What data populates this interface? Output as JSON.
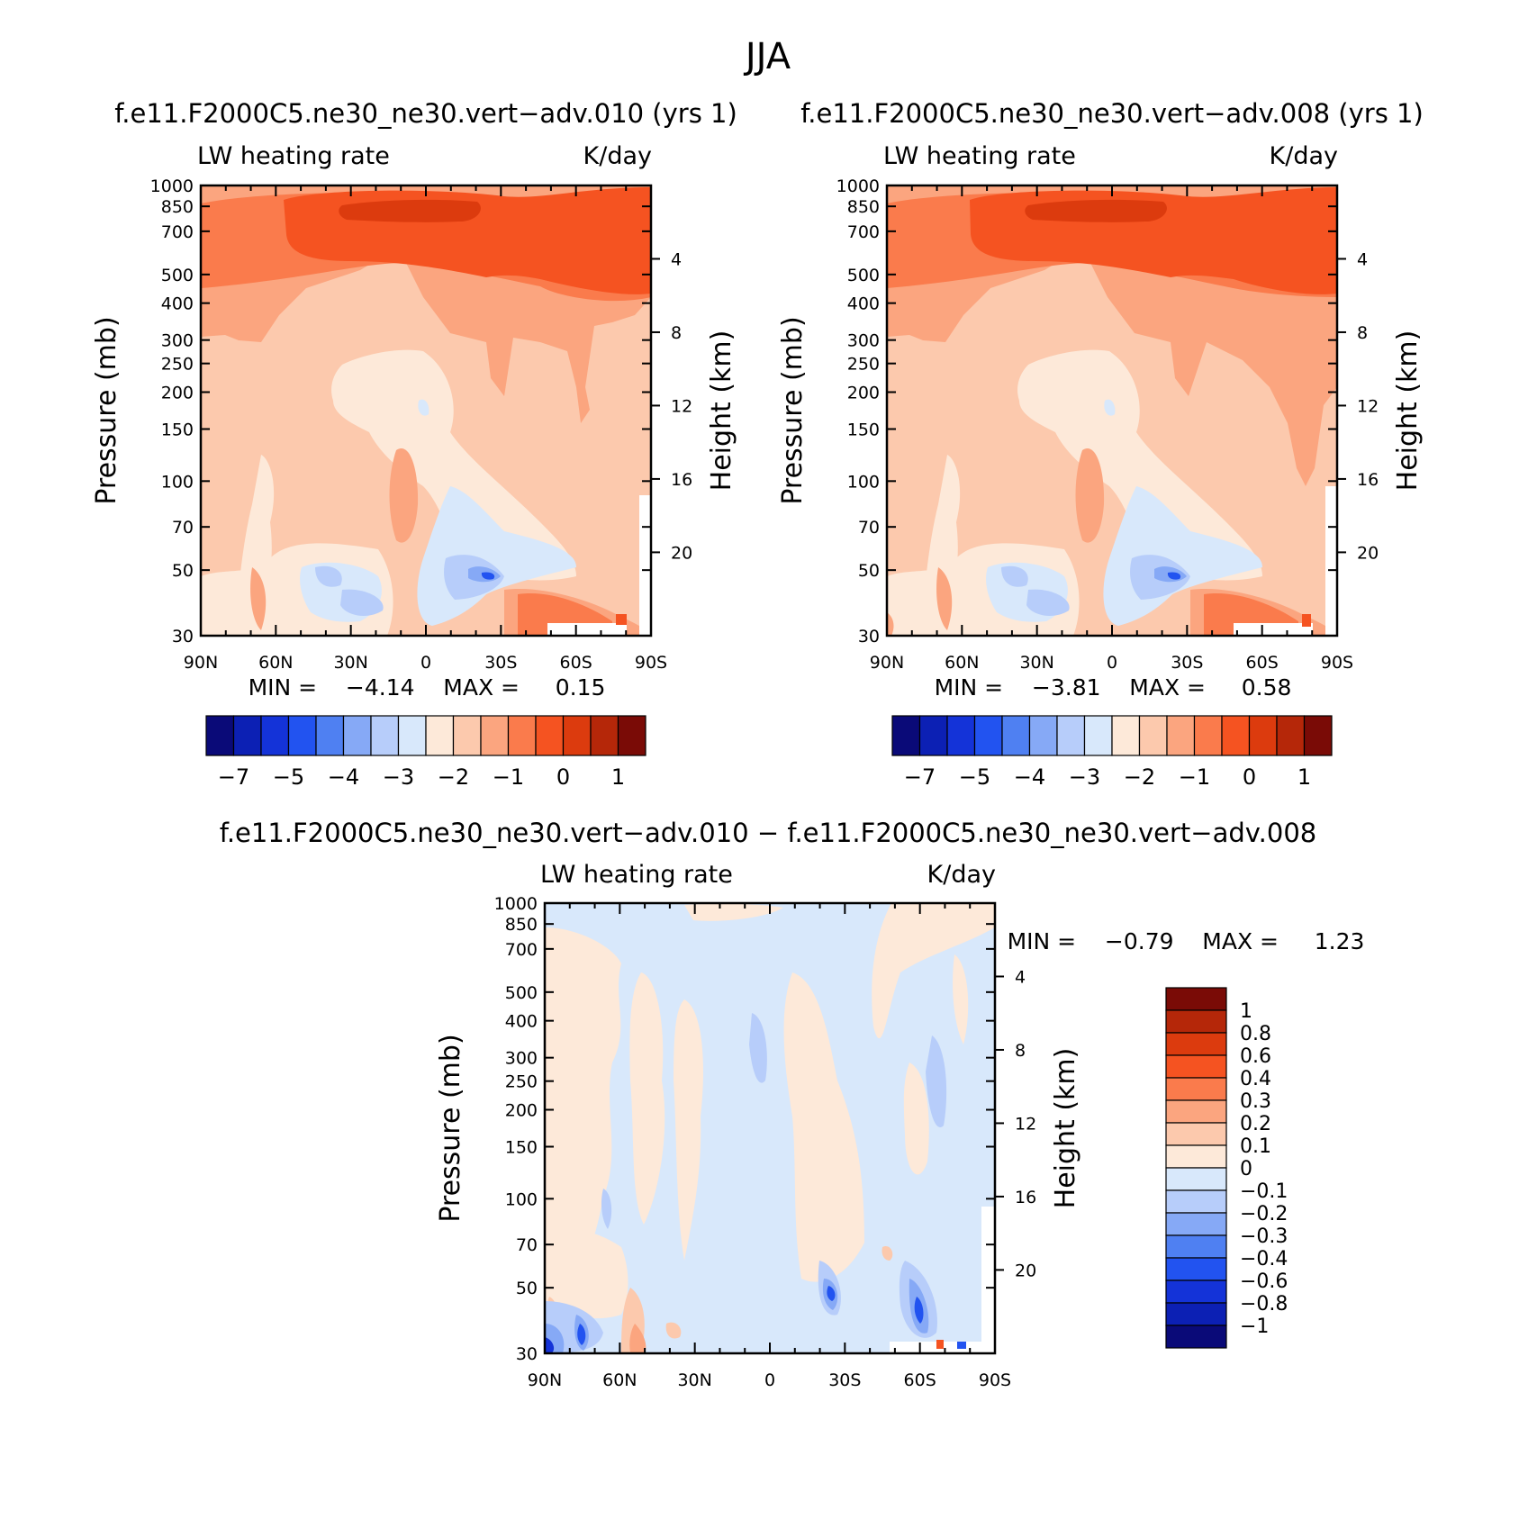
{
  "page_title": "JJA",
  "panels": {
    "p1": {
      "title": "f.e11.F2000C5.ne30_ne30.vert−adv.010  (yrs  1)",
      "left_label": "LW heating rate",
      "right_label": "K/day",
      "ylabel": "Pressure (mb)",
      "y2label": "Height (km)",
      "minmax": "MIN =    −4.14    MAX =     0.15"
    },
    "p2": {
      "title": "f.e11.F2000C5.ne30_ne30.vert−adv.008  (yrs  1)",
      "left_label": "LW heating rate",
      "right_label": "K/day",
      "ylabel": "Pressure (mb)",
      "y2label": "Height (km)",
      "minmax": "MIN =    −3.81    MAX =     0.58"
    },
    "p3": {
      "title": "f.e11.F2000C5.ne30_ne30.vert−adv.010  −  f.e11.F2000C5.ne30_ne30.vert−adv.008",
      "left_label": "LW heating rate",
      "right_label": "K/day",
      "ylabel": "Pressure (mb)",
      "y2label": "Height (km)",
      "minmax": "MIN =    −0.79    MAX =     1.23"
    }
  },
  "chart_data": [
    {
      "type": "heatmap",
      "title": "f.e11.F2000C5.ne30_ne30.vert−adv.010  (yrs  1)",
      "variable": "LW heating rate",
      "units": "K/day",
      "x_ticklabels": [
        "90N",
        "60N",
        "30N",
        "0",
        "30S",
        "60S",
        "90S"
      ],
      "y_ticklabels": [
        "30",
        "50",
        "70",
        "100",
        "150",
        "200",
        "250",
        "300",
        "400",
        "500",
        "700",
        "850",
        "1000"
      ],
      "y2_ticklabels": [
        "20",
        "16",
        "12",
        "8",
        "4"
      ],
      "ylabel": "Pressure (mb)",
      "y2label": "Height (km)",
      "min": -4.14,
      "max": 0.15,
      "colorbar_labels": [
        "−7",
        "−5",
        "−4",
        "−3",
        "−2",
        "−1",
        "0",
        "1"
      ]
    },
    {
      "type": "heatmap",
      "title": "f.e11.F2000C5.ne30_ne30.vert−adv.008  (yrs  1)",
      "variable": "LW heating rate",
      "units": "K/day",
      "x_ticklabels": [
        "90N",
        "60N",
        "30N",
        "0",
        "30S",
        "60S",
        "90S"
      ],
      "y_ticklabels": [
        "30",
        "50",
        "70",
        "100",
        "150",
        "200",
        "250",
        "300",
        "400",
        "500",
        "700",
        "850",
        "1000"
      ],
      "y2_ticklabels": [
        "20",
        "16",
        "12",
        "8",
        "4"
      ],
      "ylabel": "Pressure (mb)",
      "y2label": "Height (km)",
      "min": -3.81,
      "max": 0.58,
      "colorbar_labels": [
        "−7",
        "−5",
        "−4",
        "−3",
        "−2",
        "−1",
        "0",
        "1"
      ]
    },
    {
      "type": "heatmap",
      "title": "f.e11.F2000C5.ne30_ne30.vert−adv.010  −  f.e11.F2000C5.ne30_ne30.vert−adv.008",
      "variable": "LW heating rate",
      "units": "K/day",
      "x_ticklabels": [
        "90N",
        "60N",
        "30N",
        "0",
        "30S",
        "60S",
        "90S"
      ],
      "y_ticklabels": [
        "30",
        "50",
        "70",
        "100",
        "150",
        "200",
        "250",
        "300",
        "400",
        "500",
        "700",
        "850",
        "1000"
      ],
      "y2_ticklabels": [
        "20",
        "16",
        "12",
        "8",
        "4"
      ],
      "ylabel": "Pressure (mb)",
      "y2label": "Height (km)",
      "min": -0.79,
      "max": 1.23,
      "colorbar_labels": [
        "1",
        "0.8",
        "0.6",
        "0.4",
        "0.3",
        "0.2",
        "0.1",
        "0",
        "−0.1",
        "−0.2",
        "−0.3",
        "−0.4",
        "−0.6",
        "−0.8",
        "−1"
      ]
    }
  ],
  "colors": {
    "scale": [
      "#0a0a78",
      "#0c20b4",
      "#1433d8",
      "#2253f0",
      "#4f80f2",
      "#86a9f6",
      "#b7cdfa",
      "#d8e8fb",
      "#fde9d9",
      "#fcc9ad",
      "#fba57f",
      "#fa7b4c",
      "#f55321",
      "#dc3b0e",
      "#b52709",
      "#7a0b06"
    ]
  }
}
